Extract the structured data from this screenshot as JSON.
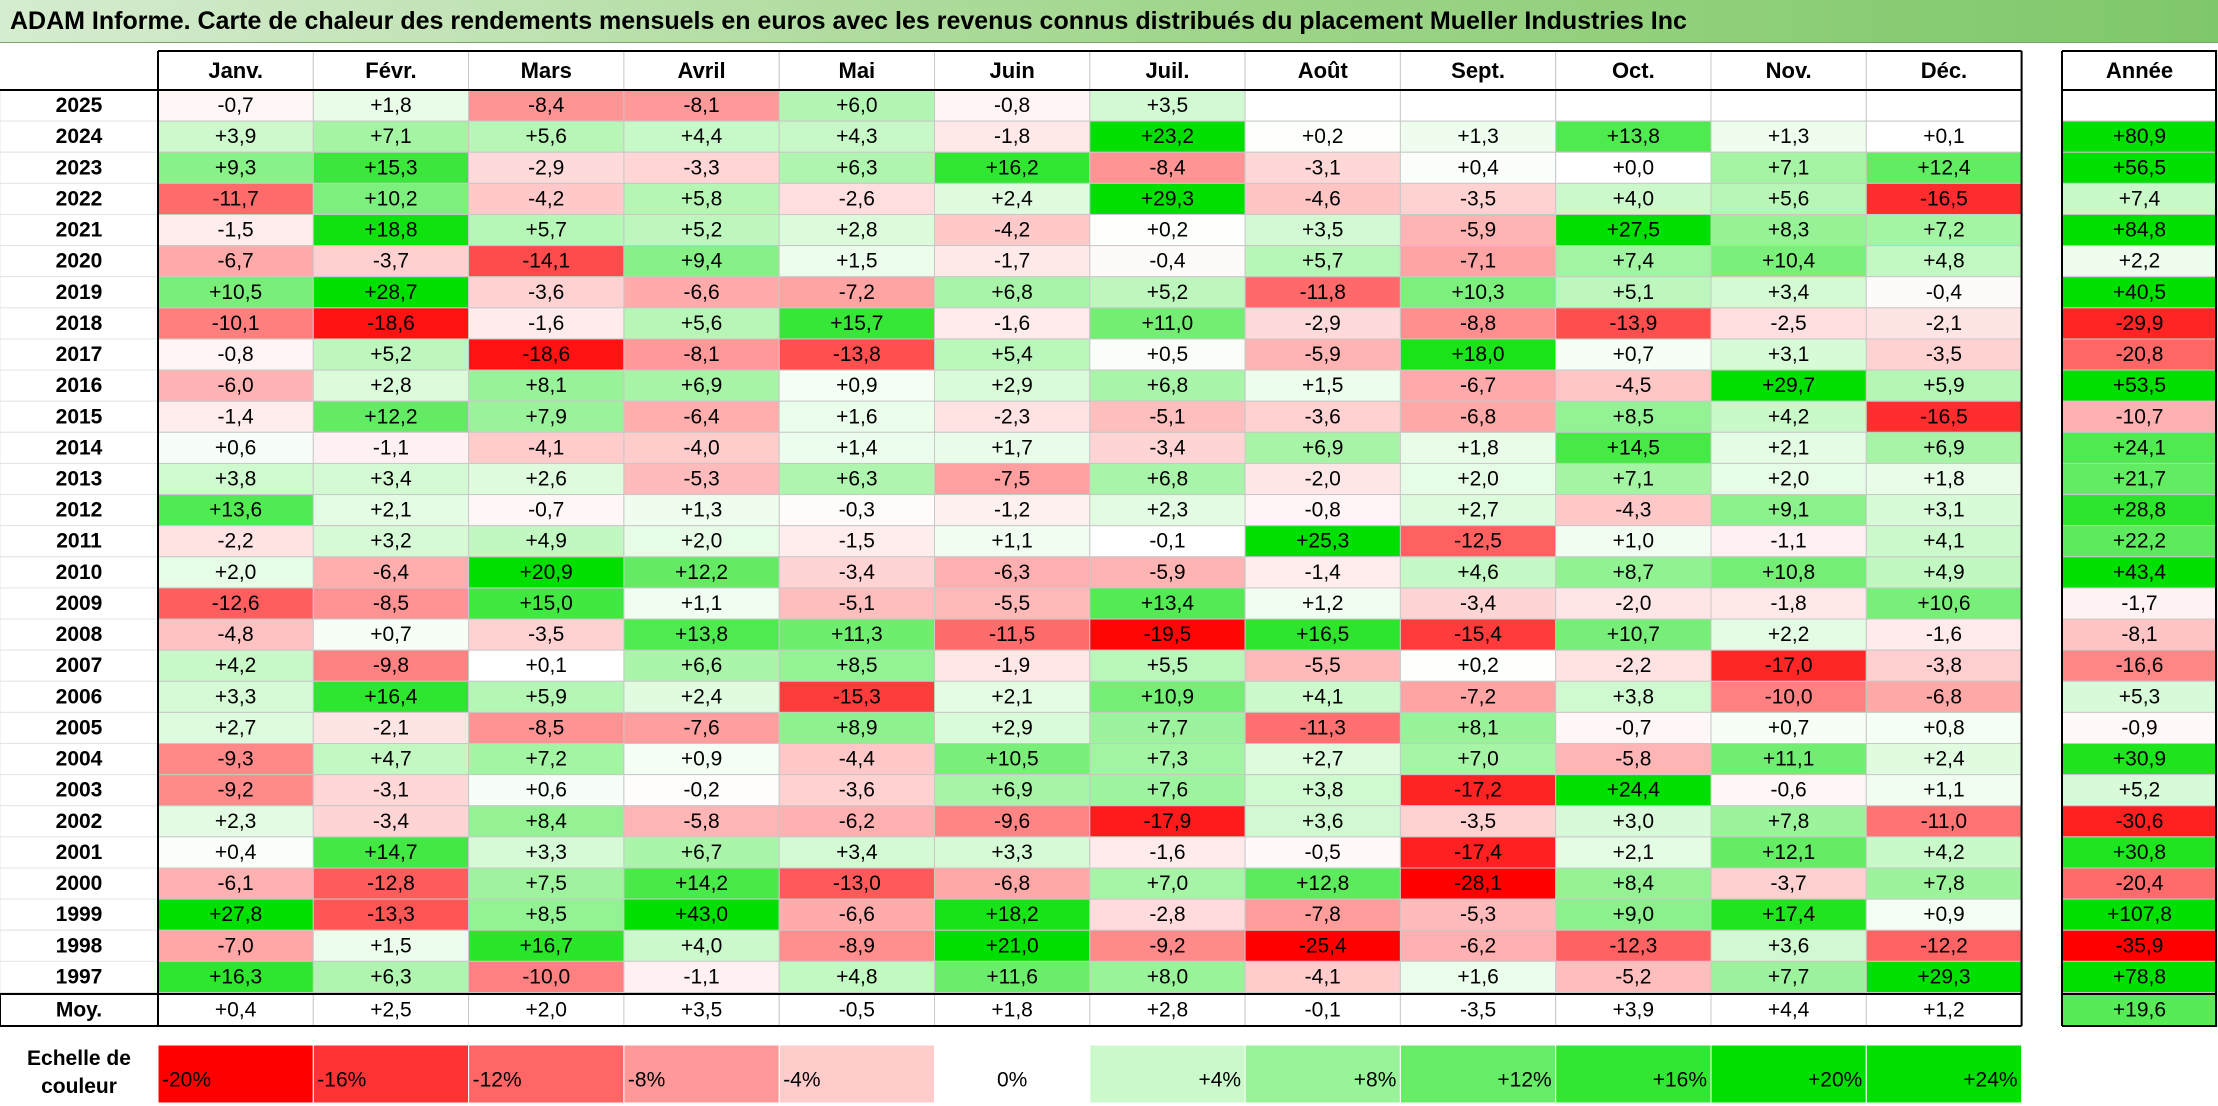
{
  "title": "ADAM Informe. Carte de chaleur des rendements mensuels en euros avec les revenus connus distribués du placement Mueller Industries Inc",
  "legend_label": "Echelle de couleur",
  "chart_data": {
    "type": "heatmap",
    "months": [
      "Janv.",
      "Févr.",
      "Mars",
      "Avril",
      "Mai",
      "Juin",
      "Juil.",
      "Août",
      "Sept.",
      "Oct.",
      "Nov.",
      "Déc."
    ],
    "year_header": "Année",
    "avg_label": "Moy.",
    "rows": [
      {
        "year": "2025",
        "values": [
          "-0,7",
          "+1,8",
          "-8,4",
          "-8,1",
          "+6,0",
          "-0,8",
          "+3,5",
          "",
          "",
          "",
          "",
          ""
        ],
        "annual": ""
      },
      {
        "year": "2024",
        "values": [
          "+3,9",
          "+7,1",
          "+5,6",
          "+4,4",
          "+4,3",
          "-1,8",
          "+23,2",
          "+0,2",
          "+1,3",
          "+13,8",
          "+1,3",
          "+0,1"
        ],
        "annual": "+80,9"
      },
      {
        "year": "2023",
        "values": [
          "+9,3",
          "+15,3",
          "-2,9",
          "-3,3",
          "+6,3",
          "+16,2",
          "-8,4",
          "-3,1",
          "+0,4",
          "+0,0",
          "+7,1",
          "+12,4"
        ],
        "annual": "+56,5"
      },
      {
        "year": "2022",
        "values": [
          "-11,7",
          "+10,2",
          "-4,2",
          "+5,8",
          "-2,6",
          "+2,4",
          "+29,3",
          "-4,6",
          "-3,5",
          "+4,0",
          "+5,6",
          "-16,5"
        ],
        "annual": "+7,4"
      },
      {
        "year": "2021",
        "values": [
          "-1,5",
          "+18,8",
          "+5,7",
          "+5,2",
          "+2,8",
          "-4,2",
          "+0,2",
          "+3,5",
          "-5,9",
          "+27,5",
          "+8,3",
          "+7,2"
        ],
        "annual": "+84,8"
      },
      {
        "year": "2020",
        "values": [
          "-6,7",
          "-3,7",
          "-14,1",
          "+9,4",
          "+1,5",
          "-1,7",
          "-0,4",
          "+5,7",
          "-7,1",
          "+7,4",
          "+10,4",
          "+4,8"
        ],
        "annual": "+2,2"
      },
      {
        "year": "2019",
        "values": [
          "+10,5",
          "+28,7",
          "-3,6",
          "-6,6",
          "-7,2",
          "+6,8",
          "+5,2",
          "-11,8",
          "+10,3",
          "+5,1",
          "+3,4",
          "-0,4"
        ],
        "annual": "+40,5"
      },
      {
        "year": "2018",
        "values": [
          "-10,1",
          "-18,6",
          "-1,6",
          "+5,6",
          "+15,7",
          "-1,6",
          "+11,0",
          "-2,9",
          "-8,8",
          "-13,9",
          "-2,5",
          "-2,1"
        ],
        "annual": "-29,9"
      },
      {
        "year": "2017",
        "values": [
          "-0,8",
          "+5,2",
          "-18,6",
          "-8,1",
          "-13,8",
          "+5,4",
          "+0,5",
          "-5,9",
          "+18,0",
          "+0,7",
          "+3,1",
          "-3,5"
        ],
        "annual": "-20,8"
      },
      {
        "year": "2016",
        "values": [
          "-6,0",
          "+2,8",
          "+8,1",
          "+6,9",
          "+0,9",
          "+2,9",
          "+6,8",
          "+1,5",
          "-6,7",
          "-4,5",
          "+29,7",
          "+5,9"
        ],
        "annual": "+53,5"
      },
      {
        "year": "2015",
        "values": [
          "-1,4",
          "+12,2",
          "+7,9",
          "-6,4",
          "+1,6",
          "-2,3",
          "-5,1",
          "-3,6",
          "-6,8",
          "+8,5",
          "+4,2",
          "-16,5"
        ],
        "annual": "-10,7"
      },
      {
        "year": "2014",
        "values": [
          "+0,6",
          "-1,1",
          "-4,1",
          "-4,0",
          "+1,4",
          "+1,7",
          "-3,4",
          "+6,9",
          "+1,8",
          "+14,5",
          "+2,1",
          "+6,9"
        ],
        "annual": "+24,1"
      },
      {
        "year": "2013",
        "values": [
          "+3,8",
          "+3,4",
          "+2,6",
          "-5,3",
          "+6,3",
          "-7,5",
          "+6,8",
          "-2,0",
          "+2,0",
          "+7,1",
          "+2,0",
          "+1,8"
        ],
        "annual": "+21,7"
      },
      {
        "year": "2012",
        "values": [
          "+13,6",
          "+2,1",
          "-0,7",
          "+1,3",
          "-0,3",
          "-1,2",
          "+2,3",
          "-0,8",
          "+2,7",
          "-4,3",
          "+9,1",
          "+3,1"
        ],
        "annual": "+28,8"
      },
      {
        "year": "2011",
        "values": [
          "-2,2",
          "+3,2",
          "+4,9",
          "+2,0",
          "-1,5",
          "+1,1",
          "-0,1",
          "+25,3",
          "-12,5",
          "+1,0",
          "-1,1",
          "+4,1"
        ],
        "annual": "+22,2"
      },
      {
        "year": "2010",
        "values": [
          "+2,0",
          "-6,4",
          "+20,9",
          "+12,2",
          "-3,4",
          "-6,3",
          "-5,9",
          "-1,4",
          "+4,6",
          "+8,7",
          "+10,8",
          "+4,9"
        ],
        "annual": "+43,4"
      },
      {
        "year": "2009",
        "values": [
          "-12,6",
          "-8,5",
          "+15,0",
          "+1,1",
          "-5,1",
          "-5,5",
          "+13,4",
          "+1,2",
          "-3,4",
          "-2,0",
          "-1,8",
          "+10,6"
        ],
        "annual": "-1,7"
      },
      {
        "year": "2008",
        "values": [
          "-4,8",
          "+0,7",
          "-3,5",
          "+13,8",
          "+11,3",
          "-11,5",
          "-19,5",
          "+16,5",
          "-15,4",
          "+10,7",
          "+2,2",
          "-1,6"
        ],
        "annual": "-8,1"
      },
      {
        "year": "2007",
        "values": [
          "+4,2",
          "-9,8",
          "+0,1",
          "+6,6",
          "+8,5",
          "-1,9",
          "+5,5",
          "-5,5",
          "+0,2",
          "-2,2",
          "-17,0",
          "-3,8"
        ],
        "annual": "-16,6"
      },
      {
        "year": "2006",
        "values": [
          "+3,3",
          "+16,4",
          "+5,9",
          "+2,4",
          "-15,3",
          "+2,1",
          "+10,9",
          "+4,1",
          "-7,2",
          "+3,8",
          "-10,0",
          "-6,8"
        ],
        "annual": "+5,3"
      },
      {
        "year": "2005",
        "values": [
          "+2,7",
          "-2,1",
          "-8,5",
          "-7,6",
          "+8,9",
          "+2,9",
          "+7,7",
          "-11,3",
          "+8,1",
          "-0,7",
          "+0,7",
          "+0,8"
        ],
        "annual": "-0,9"
      },
      {
        "year": "2004",
        "values": [
          "-9,3",
          "+4,7",
          "+7,2",
          "+0,9",
          "-4,4",
          "+10,5",
          "+7,3",
          "+2,7",
          "+7,0",
          "-5,8",
          "+11,1",
          "+2,4"
        ],
        "annual": "+30,9"
      },
      {
        "year": "2003",
        "values": [
          "-9,2",
          "-3,1",
          "+0,6",
          "-0,2",
          "-3,6",
          "+6,9",
          "+7,6",
          "+3,8",
          "-17,2",
          "+24,4",
          "-0,6",
          "+1,1"
        ],
        "annual": "+5,2"
      },
      {
        "year": "2002",
        "values": [
          "+2,3",
          "-3,4",
          "+8,4",
          "-5,8",
          "-6,2",
          "-9,6",
          "-17,9",
          "+3,6",
          "-3,5",
          "+3,0",
          "+7,8",
          "-11,0"
        ],
        "annual": "-30,6"
      },
      {
        "year": "2001",
        "values": [
          "+0,4",
          "+14,7",
          "+3,3",
          "+6,7",
          "+3,4",
          "+3,3",
          "-1,6",
          "-0,5",
          "-17,4",
          "+2,1",
          "+12,1",
          "+4,2"
        ],
        "annual": "+30,8"
      },
      {
        "year": "2000",
        "values": [
          "-6,1",
          "-12,8",
          "+7,5",
          "+14,2",
          "-13,0",
          "-6,8",
          "+7,0",
          "+12,8",
          "-28,1",
          "+8,4",
          "-3,7",
          "+7,8"
        ],
        "annual": "-20,4"
      },
      {
        "year": "1999",
        "values": [
          "+27,8",
          "-13,3",
          "+8,5",
          "+43,0",
          "-6,6",
          "+18,2",
          "-2,8",
          "-7,8",
          "-5,3",
          "+9,0",
          "+17,4",
          "+0,9"
        ],
        "annual": "+107,8"
      },
      {
        "year": "1998",
        "values": [
          "-7,0",
          "+1,5",
          "+16,7",
          "+4,0",
          "-8,9",
          "+21,0",
          "-9,2",
          "-25,4",
          "-6,2",
          "-12,3",
          "+3,6",
          "-12,2"
        ],
        "annual": "-35,9"
      },
      {
        "year": "1997",
        "values": [
          "+16,3",
          "+6,3",
          "-10,0",
          "-1,1",
          "+4,8",
          "+11,6",
          "+8,0",
          "-4,1",
          "+1,6",
          "-5,2",
          "+7,7",
          "+29,3"
        ],
        "annual": "+78,8"
      }
    ],
    "average": {
      "values": [
        "+0,4",
        "+2,5",
        "+2,0",
        "+3,5",
        "-0,5",
        "+1,8",
        "+2,8",
        "-0,1",
        "-3,5",
        "+3,9",
        "+4,4",
        "+1,2"
      ],
      "annual": "+19,6"
    },
    "color_scale": [
      "-20%",
      "-16%",
      "-12%",
      "-8%",
      "-4%",
      "0%",
      "+4%",
      "+8%",
      "+12%",
      "+16%",
      "+20%",
      "+24%"
    ],
    "colors": {
      "negative_max": "#ff0000",
      "neutral": "#ffffff",
      "positive_max": "#00e000"
    }
  }
}
